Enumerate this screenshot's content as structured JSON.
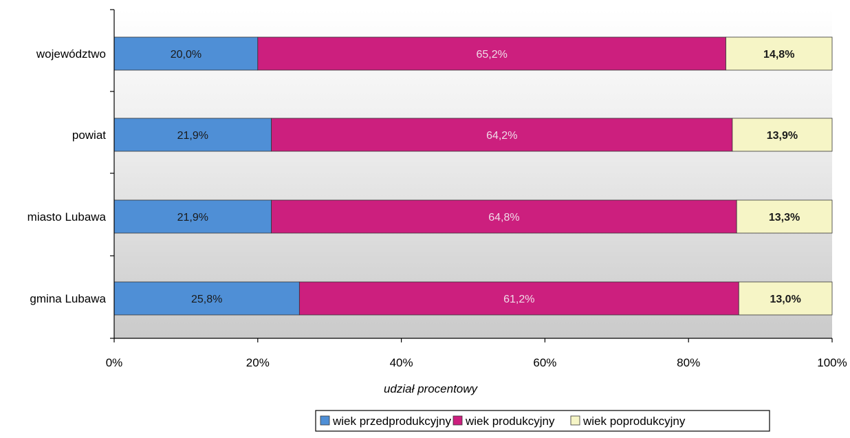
{
  "chart_data": {
    "type": "bar",
    "orientation": "horizontal",
    "stacked": "percent",
    "categories": [
      "województwo",
      "powiat",
      "miasto Lubawa",
      "gmina Lubawa"
    ],
    "series": [
      {
        "name": "wiek przedprodukcyjny",
        "color": "#4f8fd6",
        "values": [
          20.0,
          21.9,
          21.9,
          25.8
        ],
        "labels": [
          "20,0%",
          "21,9%",
          "21,9%",
          "25,8%"
        ]
      },
      {
        "name": "wiek produkcyjny",
        "color": "#cc1f7e",
        "values": [
          65.2,
          64.2,
          64.8,
          61.2
        ],
        "labels": [
          "65,2%",
          "64,2%",
          "64,8%",
          "61,2%"
        ]
      },
      {
        "name": "wiek poprodukcyjny",
        "color": "#f6f5c6",
        "values": [
          14.8,
          13.9,
          13.3,
          13.0
        ],
        "labels": [
          "14,8%",
          "13,9%",
          "13,3%",
          "13,0%"
        ]
      }
    ],
    "xlabel": "udział procentowy",
    "ylabel": "",
    "xlim": [
      0,
      100
    ],
    "xticks": [
      "0%",
      "20%",
      "40%",
      "60%",
      "80%",
      "100%"
    ],
    "grid": false,
    "legend": "bottom-right"
  }
}
